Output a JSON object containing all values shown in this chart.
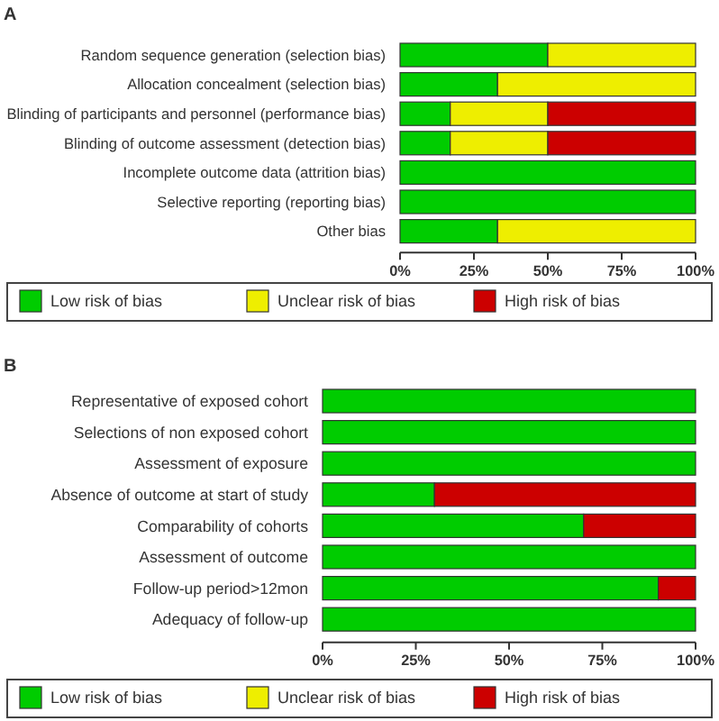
{
  "chart_data": [
    {
      "type": "bar",
      "title": "A",
      "orientation": "horizontal",
      "stacked": true,
      "legend": "bottom",
      "grid": false,
      "categories": [
        "Random sequence generation (selection bias)",
        "Allocation concealment (selection bias)",
        "Blinding of participants and personnel (performance bias)",
        "Blinding of outcome assessment (detection bias)",
        "Incomplete outcome data (attrition bias)",
        "Selective reporting (reporting bias)",
        "Other bias"
      ],
      "xlim": [
        0,
        100
      ],
      "xticks": [
        {
          "value": 0,
          "label": "0%"
        },
        {
          "value": 25,
          "label": "25%"
        },
        {
          "value": 50,
          "label": "50%"
        },
        {
          "value": 75,
          "label": "75%"
        },
        {
          "value": 100,
          "label": "100%"
        }
      ],
      "series": [
        {
          "name": "Low risk of bias",
          "color": "#00cc00",
          "values": [
            50,
            33,
            17,
            17,
            100,
            100,
            33
          ]
        },
        {
          "name": "Unclear risk of bias",
          "color": "#eeee00",
          "values": [
            50,
            67,
            33,
            33,
            0,
            0,
            67
          ]
        },
        {
          "name": "High risk of bias",
          "color": "#cc0000",
          "values": [
            0,
            0,
            50,
            50,
            0,
            0,
            0
          ]
        }
      ]
    },
    {
      "type": "bar",
      "title": "B",
      "orientation": "horizontal",
      "stacked": true,
      "legend": "bottom",
      "grid": false,
      "categories": [
        "Representative of exposed cohort",
        "Selections of non exposed cohort",
        "Assessment of exposure",
        "Absence of outcome at start of study",
        "Comparability of cohorts",
        "Assessment of outcome",
        "Follow-up period>12mon",
        "Adequacy of follow-up"
      ],
      "xlim": [
        0,
        100
      ],
      "xticks": [
        {
          "value": 0,
          "label": "0%"
        },
        {
          "value": 25,
          "label": "25%"
        },
        {
          "value": 50,
          "label": "50%"
        },
        {
          "value": 75,
          "label": "75%"
        },
        {
          "value": 100,
          "label": "100%"
        }
      ],
      "series": [
        {
          "name": "Low risk of bias",
          "color": "#00cc00",
          "values": [
            100,
            100,
            100,
            30,
            70,
            100,
            90,
            100
          ]
        },
        {
          "name": "Unclear risk of bias",
          "color": "#eeee00",
          "values": [
            0,
            0,
            0,
            0,
            0,
            0,
            0,
            0
          ]
        },
        {
          "name": "High risk of bias",
          "color": "#cc0000",
          "values": [
            0,
            0,
            0,
            70,
            30,
            0,
            10,
            0
          ]
        }
      ]
    }
  ]
}
